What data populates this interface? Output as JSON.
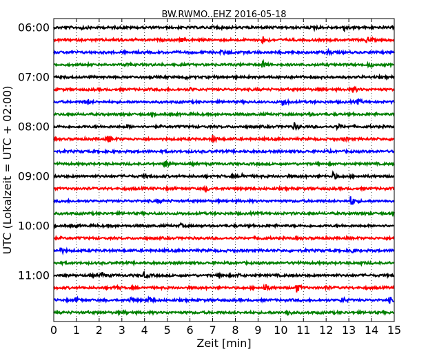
{
  "chart_data": {
    "type": "line",
    "title": "BW.RWMO..EHZ 2016-05-18",
    "xlabel": "Zeit  [min]",
    "ylabel": "UTC (Lokalzeit = UTC + 02:00)",
    "xlim": [
      0,
      15
    ],
    "x_ticks": [
      "0",
      "1",
      "2",
      "3",
      "4",
      "5",
      "6",
      "7",
      "8",
      "9",
      "10",
      "11",
      "12",
      "13",
      "14",
      "15"
    ],
    "y_ticks": [
      "06:00",
      "07:00",
      "08:00",
      "09:00",
      "10:00",
      "11:00"
    ],
    "grid": "vertical dotted at each minute",
    "colors": [
      "#000000",
      "#ff0000",
      "#0000ff",
      "#008000"
    ],
    "series": [
      {
        "start": "06:00",
        "color": "#000000",
        "events": [
          {
            "t": 1.2,
            "a": 0.25
          },
          {
            "t": 7.0,
            "a": 0.3
          },
          {
            "t": 11.5,
            "a": 0.25
          },
          {
            "t": 12.8,
            "a": 0.6
          }
        ]
      },
      {
        "start": "06:15",
        "color": "#ff0000",
        "events": [
          {
            "t": 2.8,
            "a": 0.25
          },
          {
            "t": 5.6,
            "a": 0.3
          },
          {
            "t": 9.2,
            "a": 0.6
          },
          {
            "t": 13.8,
            "a": 0.5
          }
        ]
      },
      {
        "start": "06:30",
        "color": "#0000ff",
        "events": [
          {
            "t": 7.4,
            "a": 0.3
          },
          {
            "t": 7.7,
            "a": 0.25
          },
          {
            "t": 12.1,
            "a": 0.3
          }
        ]
      },
      {
        "start": "06:45",
        "color": "#008000",
        "events": [
          {
            "t": 3.2,
            "a": 0.25
          },
          {
            "t": 9.2,
            "a": 0.6
          },
          {
            "t": 13.9,
            "a": 0.4
          }
        ]
      },
      {
        "start": "07:00",
        "color": "#000000",
        "events": [
          {
            "t": 5.8,
            "a": 0.25
          },
          {
            "t": 10.1,
            "a": 0.25
          }
        ]
      },
      {
        "start": "07:15",
        "color": "#ff0000",
        "events": [
          {
            "t": 6.0,
            "a": 0.2
          },
          {
            "t": 11.7,
            "a": 0.25
          },
          {
            "t": 13.2,
            "a": 0.45
          }
        ]
      },
      {
        "start": "07:30",
        "color": "#0000ff",
        "events": [
          {
            "t": 1.4,
            "a": 0.45
          },
          {
            "t": 10.1,
            "a": 0.8
          },
          {
            "t": 13.4,
            "a": 0.35
          }
        ]
      },
      {
        "start": "07:45",
        "color": "#008000",
        "events": [
          {
            "t": 11.2,
            "a": 0.25
          }
        ]
      },
      {
        "start": "08:00",
        "color": "#000000",
        "events": [
          {
            "t": 3.2,
            "a": 0.3
          },
          {
            "t": 10.6,
            "a": 0.55
          },
          {
            "t": 12.5,
            "a": 0.4
          }
        ]
      },
      {
        "start": "08:15",
        "color": "#ff0000",
        "events": [
          {
            "t": 2.4,
            "a": 0.6
          },
          {
            "t": 7.0,
            "a": 0.55
          },
          {
            "t": 12.8,
            "a": 0.3
          }
        ]
      },
      {
        "start": "08:30",
        "color": "#0000ff",
        "events": []
      },
      {
        "start": "08:45",
        "color": "#008000",
        "events": [
          {
            "t": 4.9,
            "a": 0.65
          }
        ]
      },
      {
        "start": "09:00",
        "color": "#000000",
        "events": [
          {
            "t": 4.0,
            "a": 0.2
          },
          {
            "t": 8.3,
            "a": 0.3
          },
          {
            "t": 12.3,
            "a": 0.55
          }
        ]
      },
      {
        "start": "09:15",
        "color": "#ff0000",
        "events": [
          {
            "t": 6.7,
            "a": 0.4
          }
        ]
      },
      {
        "start": "09:30",
        "color": "#0000ff",
        "events": [
          {
            "t": 4.6,
            "a": 0.25
          },
          {
            "t": 13.1,
            "a": 0.9
          }
        ]
      },
      {
        "start": "09:45",
        "color": "#008000",
        "events": []
      },
      {
        "start": "10:00",
        "color": "#000000",
        "events": [
          {
            "t": 1.0,
            "a": 0.2
          },
          {
            "t": 5.6,
            "a": 0.25
          }
        ]
      },
      {
        "start": "10:15",
        "color": "#ff0000",
        "events": [
          {
            "t": 9.0,
            "a": 0.25
          }
        ]
      },
      {
        "start": "10:30",
        "color": "#0000ff",
        "events": [
          {
            "t": 0.3,
            "a": 0.4
          },
          {
            "t": 13.1,
            "a": 0.5
          }
        ]
      },
      {
        "start": "10:45",
        "color": "#008000",
        "events": [
          {
            "t": 10.6,
            "a": 0.2
          },
          {
            "t": 13.5,
            "a": 0.2
          }
        ]
      },
      {
        "start": "11:00",
        "color": "#000000",
        "events": [
          {
            "t": 2.1,
            "a": 0.45
          },
          {
            "t": 4.0,
            "a": 0.5
          },
          {
            "t": 7.3,
            "a": 0.35
          },
          {
            "t": 8.1,
            "a": 0.25
          }
        ]
      },
      {
        "start": "11:15",
        "color": "#ff0000",
        "events": [
          {
            "t": 2.7,
            "a": 0.4
          },
          {
            "t": 9.3,
            "a": 0.6
          },
          {
            "t": 10.7,
            "a": 0.7
          },
          {
            "t": 12.0,
            "a": 0.3
          }
        ]
      },
      {
        "start": "11:30",
        "color": "#0000ff",
        "events": [
          {
            "t": 1.0,
            "a": 0.35
          },
          {
            "t": 3.4,
            "a": 0.45
          },
          {
            "t": 4.2,
            "a": 0.5
          },
          {
            "t": 12.7,
            "a": 0.45
          },
          {
            "t": 14.8,
            "a": 0.35
          }
        ]
      },
      {
        "start": "11:45",
        "color": "#008000",
        "events": [
          {
            "t": 3.1,
            "a": 0.2
          },
          {
            "t": 10.3,
            "a": 0.45
          }
        ]
      }
    ]
  }
}
